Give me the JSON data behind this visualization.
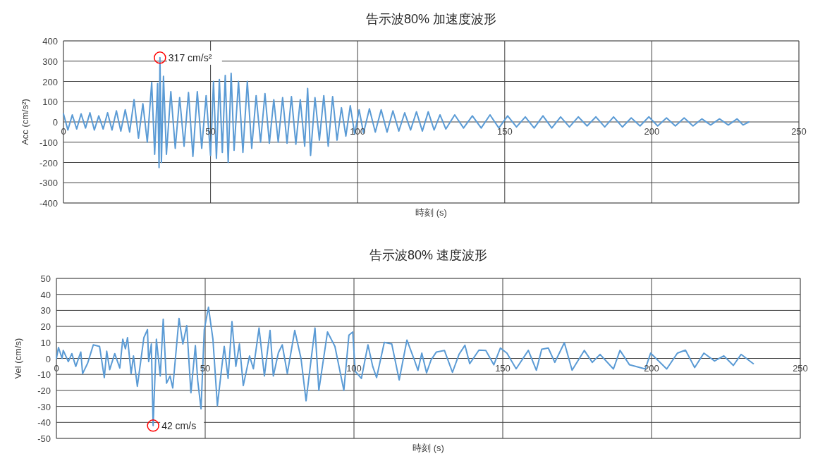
{
  "chart_data": [
    {
      "type": "line",
      "title": "告示波80%  加速度波形",
      "xlabel": "時刻 (s)",
      "ylabel": "Acc (cm/s²)",
      "xlim": [
        0,
        250
      ],
      "xticks": [
        0,
        50,
        100,
        150,
        200,
        250
      ],
      "ylim": [
        -400,
        400
      ],
      "yticks": [
        -400,
        -300,
        -200,
        -100,
        0,
        100,
        200,
        300,
        400
      ],
      "grid": true,
      "annotations": [
        {
          "text": "317 cm/s²",
          "x": 32.8,
          "y": 317
        }
      ],
      "x": [
        0,
        1.5,
        3,
        4.5,
        6,
        7.5,
        9,
        10.5,
        12,
        13.5,
        15,
        16.5,
        18,
        19.5,
        21,
        22.5,
        24,
        25.5,
        27,
        28.5,
        30,
        31,
        32,
        32.5,
        32.8,
        33.3,
        34,
        35,
        36.5,
        38,
        39.5,
        41,
        42.5,
        44,
        45.5,
        47,
        48.5,
        50,
        51,
        52,
        53,
        54,
        55,
        56,
        57,
        58,
        59.5,
        61,
        62.5,
        64,
        65.5,
        67,
        68.5,
        70,
        71.5,
        73,
        74.5,
        76,
        77.5,
        79,
        80.5,
        82,
        83,
        84,
        85.5,
        87,
        88.5,
        90,
        91.5,
        93,
        94.5,
        96,
        97.5,
        99,
        100.5,
        102,
        104,
        106,
        108,
        110,
        112,
        114,
        116,
        118,
        120,
        122,
        124,
        126,
        128,
        130,
        133,
        136,
        139,
        142,
        145,
        148,
        151,
        154,
        157,
        160,
        163,
        166,
        169,
        172,
        175,
        178,
        181,
        184,
        187,
        190,
        193,
        196,
        199,
        202,
        205,
        208,
        211,
        214,
        217,
        220,
        223,
        226,
        229,
        231,
        233
      ],
      "series": [
        {
          "color": "#5b9bd5",
          "values": [
            40,
            -40,
            35,
            -35,
            40,
            -30,
            45,
            -40,
            30,
            -35,
            45,
            -40,
            55,
            -45,
            60,
            -50,
            110,
            -80,
            90,
            -100,
            195,
            -160,
            190,
            -225,
            317,
            -200,
            225,
            -160,
            150,
            -130,
            120,
            -120,
            145,
            -170,
            150,
            -130,
            130,
            -165,
            200,
            -180,
            210,
            -150,
            230,
            -200,
            240,
            -140,
            200,
            -150,
            200,
            -130,
            130,
            -100,
            140,
            -105,
            110,
            -100,
            120,
            -105,
            125,
            -110,
            110,
            -120,
            165,
            -165,
            120,
            -90,
            130,
            -120,
            125,
            -90,
            70,
            -70,
            80,
            -60,
            60,
            -55,
            65,
            -50,
            60,
            -50,
            55,
            -45,
            45,
            -40,
            50,
            -45,
            50,
            -40,
            35,
            -35,
            35,
            -30,
            30,
            -30,
            35,
            -30,
            30,
            -25,
            25,
            -30,
            30,
            -30,
            25,
            -25,
            25,
            -20,
            25,
            -25,
            25,
            -25,
            20,
            -20,
            25,
            -20,
            20,
            -20,
            20,
            -20,
            15,
            -15,
            15,
            -15,
            15,
            -15,
            0
          ]
        }
      ]
    },
    {
      "type": "line",
      "title": "告示波80%  速度波形",
      "xlabel": "時刻 (s)",
      "ylabel": "Vel (cm/s)",
      "xlim": [
        0,
        250
      ],
      "xticks": [
        0,
        50,
        100,
        150,
        200,
        250
      ],
      "ylim": [
        -50,
        50
      ],
      "yticks": [
        -50,
        -40,
        -30,
        -20,
        -10,
        0,
        10,
        20,
        30,
        40,
        50
      ],
      "grid": true,
      "annotations": [
        {
          "text": "42 cm/s",
          "x": 32.5,
          "y": -42
        }
      ],
      "x": [
        0,
        0.7,
        1.9,
        2.3,
        4,
        5.2,
        6.5,
        8.2,
        8.8,
        10.5,
        12.4,
        14.5,
        16.1,
        16.9,
        17.9,
        19.6,
        21.3,
        22.3,
        23.2,
        23.9,
        25.1,
        25.9,
        27.2,
        29.4,
        30.6,
        31,
        31.9,
        32.5,
        33.6,
        34.9,
        35.9,
        37,
        38.2,
        39.1,
        41.2,
        42.5,
        43.8,
        45.2,
        46.7,
        47.5,
        48.6,
        49.7,
        51.1,
        52.6,
        54.1,
        55.6,
        56.4,
        57.7,
        59,
        60.3,
        61.5,
        62.8,
        64.9,
        66.2,
        68.1,
        69.9,
        71.8,
        72.9,
        74.6,
        75.9,
        77.6,
        80.1,
        82.2,
        83.9,
        86.9,
        88.2,
        91.1,
        93.6,
        96.6,
        98.3,
        99.6,
        100.4,
        102.5,
        104.7,
        106.3,
        107.6,
        110.2,
        112.7,
        115.2,
        117.8,
        120.3,
        121.5,
        122.8,
        124.4,
        125.9,
        127.7,
        130.4,
        133.1,
        135.3,
        137.3,
        138.9,
        142,
        144.3,
        147,
        149.2,
        151.4,
        154.5,
        158.6,
        161.3,
        163.1,
        165.3,
        167.5,
        170.7,
        173.3,
        177.4,
        180.1,
        182.7,
        187.2,
        189.4,
        192.6,
        197.9,
        199.7,
        205.1,
        208.7,
        211.4,
        214.5,
        217.6,
        221.2,
        224.3,
        227.5,
        230.1,
        234.2
      ],
      "series": [
        {
          "color": "#5b9bd5",
          "values": [
            0,
            6.8,
            0,
            5,
            -2,
            3,
            -5,
            4,
            -9.5,
            -3,
            8.5,
            7.5,
            -12,
            4.5,
            -7,
            3,
            -6,
            12,
            6,
            13,
            -9.5,
            1.5,
            -17.5,
            13,
            18,
            -2,
            9,
            -42,
            12,
            -11,
            24.5,
            -15.5,
            -11,
            -18.5,
            25,
            9,
            20.5,
            -21.5,
            8,
            -14,
            -31.5,
            18,
            32,
            12,
            -29.5,
            -5,
            7.5,
            -12.5,
            23,
            -5,
            9,
            -17,
            1.5,
            -6.5,
            19,
            -11,
            17.5,
            -11,
            3.5,
            8.5,
            -9.5,
            17.5,
            0,
            -26.5,
            19,
            -20,
            16.5,
            7.5,
            -20,
            14.5,
            16.5,
            -8,
            -12.5,
            8.5,
            -5,
            -12,
            10,
            9,
            -13.5,
            11.5,
            -1,
            -7.5,
            3.3,
            -9,
            -1,
            4,
            5,
            -8.7,
            2.5,
            8.2,
            -3.3,
            5.2,
            5,
            -4,
            6.5,
            3.3,
            -6.5,
            5,
            -7.4,
            5.7,
            6.5,
            -2.5,
            9.8,
            -7.4,
            5,
            -2.5,
            2.5,
            -6.6,
            5,
            -4,
            -6.6,
            3.3,
            -6.6,
            3.3,
            5.2,
            -5.7,
            3.3,
            -1.6,
            1.6,
            -4.4,
            2.5,
            -3.3
          ]
        }
      ]
    }
  ]
}
